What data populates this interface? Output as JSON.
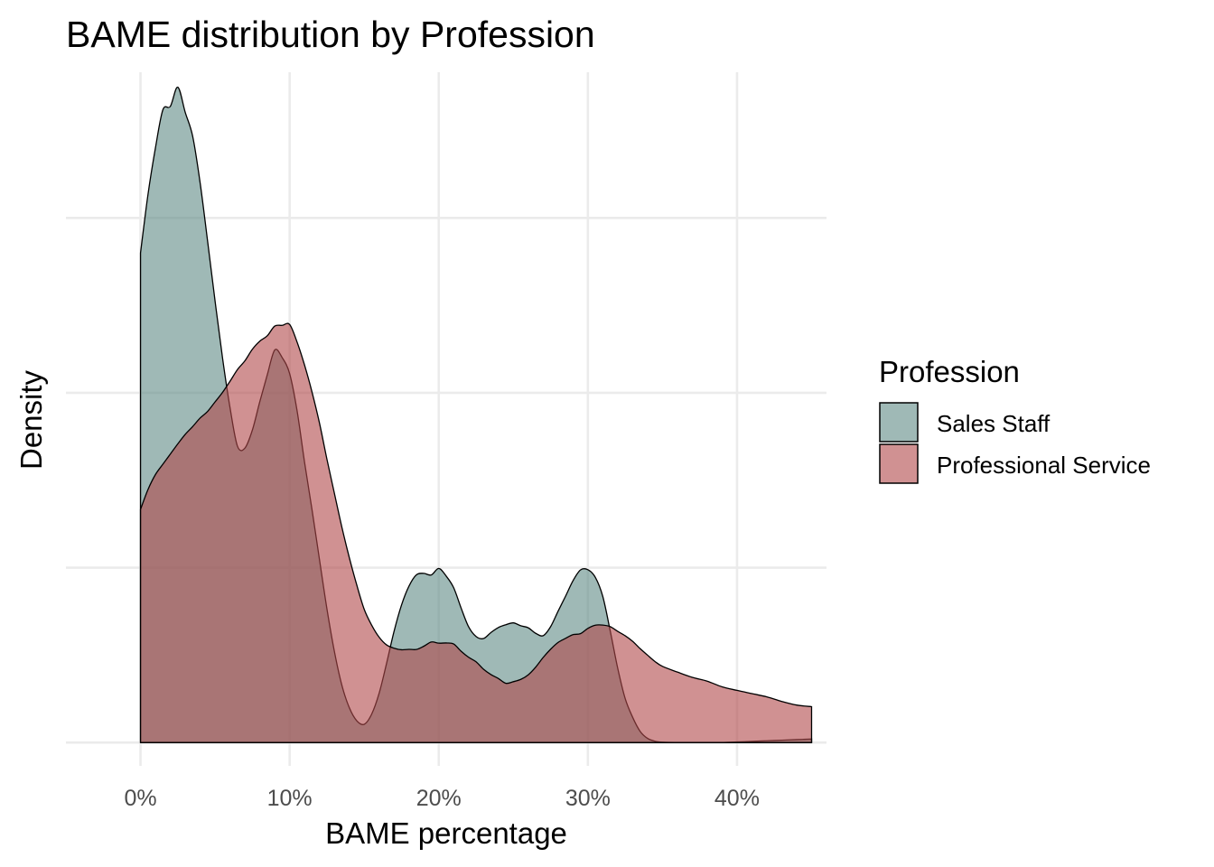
{
  "chart_data": {
    "type": "area",
    "subtype": "density",
    "title": "BAME distribution by Profession",
    "xlabel": "BAME percentage",
    "ylabel": "Density",
    "xlim": [
      -0.05,
      0.46
    ],
    "ylim": [
      -0.04,
      1.15
    ],
    "x_ticks": [
      {
        "value": 0.0,
        "label": "0%"
      },
      {
        "value": 0.1,
        "label": "10%"
      },
      {
        "value": 0.2,
        "label": "20%"
      },
      {
        "value": 0.3,
        "label": "30%"
      },
      {
        "value": 0.4,
        "label": "40%"
      }
    ],
    "y_grid": [
      0,
      0.3,
      0.6,
      0.9
    ],
    "y_tick_labels_shown": false,
    "grid": true,
    "legend": {
      "title": "Profession",
      "position": "right",
      "entries": [
        "Sales Staff",
        "Professional Service"
      ]
    },
    "series": [
      {
        "name": "Sales Staff",
        "color": "#5f8a86",
        "opacity": 0.6,
        "x": [
          0.0,
          0.005,
          0.01,
          0.015,
          0.02,
          0.025,
          0.03,
          0.035,
          0.04,
          0.045,
          0.05,
          0.055,
          0.06,
          0.065,
          0.07,
          0.075,
          0.08,
          0.085,
          0.09,
          0.095,
          0.1,
          0.105,
          0.11,
          0.115,
          0.12,
          0.125,
          0.13,
          0.135,
          0.14,
          0.145,
          0.15,
          0.155,
          0.16,
          0.165,
          0.17,
          0.175,
          0.18,
          0.185,
          0.19,
          0.195,
          0.2,
          0.205,
          0.21,
          0.215,
          0.22,
          0.225,
          0.23,
          0.235,
          0.24,
          0.245,
          0.25,
          0.255,
          0.26,
          0.265,
          0.27,
          0.275,
          0.28,
          0.285,
          0.29,
          0.295,
          0.3,
          0.305,
          0.31,
          0.315,
          0.32,
          0.325,
          0.33,
          0.335,
          0.34,
          0.345,
          0.35,
          0.36,
          0.37,
          0.38,
          0.39,
          0.4,
          0.41,
          0.42,
          0.43,
          0.44,
          0.45
        ],
        "y": [
          0.84,
          0.94,
          1.02,
          1.0855,
          1.0914,
          1.1244,
          1.0811,
          1.04,
          0.96,
          0.8601,
          0.7574,
          0.6599,
          0.5749,
          0.5086,
          0.5052,
          0.536,
          0.5849,
          0.6308,
          0.6735,
          0.6605,
          0.6329,
          0.5691,
          0.4809,
          0.3997,
          0.3142,
          0.2296,
          0.1564,
          0.0986,
          0.0599,
          0.0374,
          0.0313,
          0.0487,
          0.0844,
          0.1358,
          0.1906,
          0.2357,
          0.2682,
          0.2877,
          0.2902,
          0.2875,
          0.2988,
          0.2855,
          0.2656,
          0.2307,
          0.1987,
          0.182,
          0.1784,
          0.1888,
          0.1974,
          0.2021,
          0.2053,
          0.2003,
          0.1969,
          0.1874,
          0.1833,
          0.1988,
          0.2253,
          0.2509,
          0.2775,
          0.2961,
          0.2965,
          0.2834,
          0.2506,
          0.1912,
          0.1275,
          0.0755,
          0.0434,
          0.0193,
          0.0071,
          0.0023,
          0.0006,
          0.0,
          0.0,
          0.0,
          0.0,
          0.001,
          0.002,
          0.003,
          0.004,
          0.005,
          0.006
        ]
      },
      {
        "name": "Professional Service",
        "color": "#b0474a",
        "opacity": 0.6,
        "x": [
          0.0,
          0.005,
          0.01,
          0.015,
          0.02,
          0.025,
          0.03,
          0.035,
          0.04,
          0.045,
          0.05,
          0.055,
          0.06,
          0.065,
          0.07,
          0.075,
          0.08,
          0.085,
          0.09,
          0.095,
          0.1,
          0.105,
          0.11,
          0.115,
          0.12,
          0.125,
          0.13,
          0.135,
          0.14,
          0.145,
          0.15,
          0.155,
          0.16,
          0.165,
          0.17,
          0.175,
          0.18,
          0.185,
          0.19,
          0.195,
          0.2,
          0.205,
          0.21,
          0.215,
          0.22,
          0.225,
          0.23,
          0.235,
          0.24,
          0.245,
          0.25,
          0.255,
          0.26,
          0.265,
          0.27,
          0.275,
          0.28,
          0.285,
          0.29,
          0.295,
          0.3,
          0.305,
          0.31,
          0.315,
          0.32,
          0.325,
          0.33,
          0.335,
          0.34,
          0.345,
          0.35,
          0.36,
          0.37,
          0.38,
          0.39,
          0.4,
          0.41,
          0.42,
          0.43,
          0.44,
          0.45
        ],
        "y": [
          0.4,
          0.434,
          0.4597,
          0.4775,
          0.4949,
          0.5124,
          0.5288,
          0.5422,
          0.5568,
          0.5681,
          0.5844,
          0.6007,
          0.6197,
          0.6398,
          0.6549,
          0.6747,
          0.6887,
          0.6978,
          0.7145,
          0.7157,
          0.7173,
          0.687,
          0.6476,
          0.6014,
          0.5483,
          0.4863,
          0.4278,
          0.3698,
          0.3175,
          0.2705,
          0.2287,
          0.2015,
          0.1808,
          0.1675,
          0.1619,
          0.1592,
          0.1599,
          0.1597,
          0.1653,
          0.1725,
          0.1705,
          0.1708,
          0.1691,
          0.1566,
          0.1463,
          0.1386,
          0.1258,
          0.1166,
          0.1098,
          0.1016,
          0.1044,
          0.1084,
          0.1162,
          0.1294,
          0.1459,
          0.1601,
          0.1717,
          0.1787,
          0.1851,
          0.1868,
          0.1959,
          0.2013,
          0.2015,
          0.1988,
          0.1907,
          0.1832,
          0.1737,
          0.1612,
          0.1499,
          0.139,
          0.1307,
          0.1209,
          0.1118,
          0.1053,
          0.0956,
          0.0895,
          0.0839,
          0.0784,
          0.0705,
          0.0643,
          0.0615
        ]
      }
    ]
  }
}
